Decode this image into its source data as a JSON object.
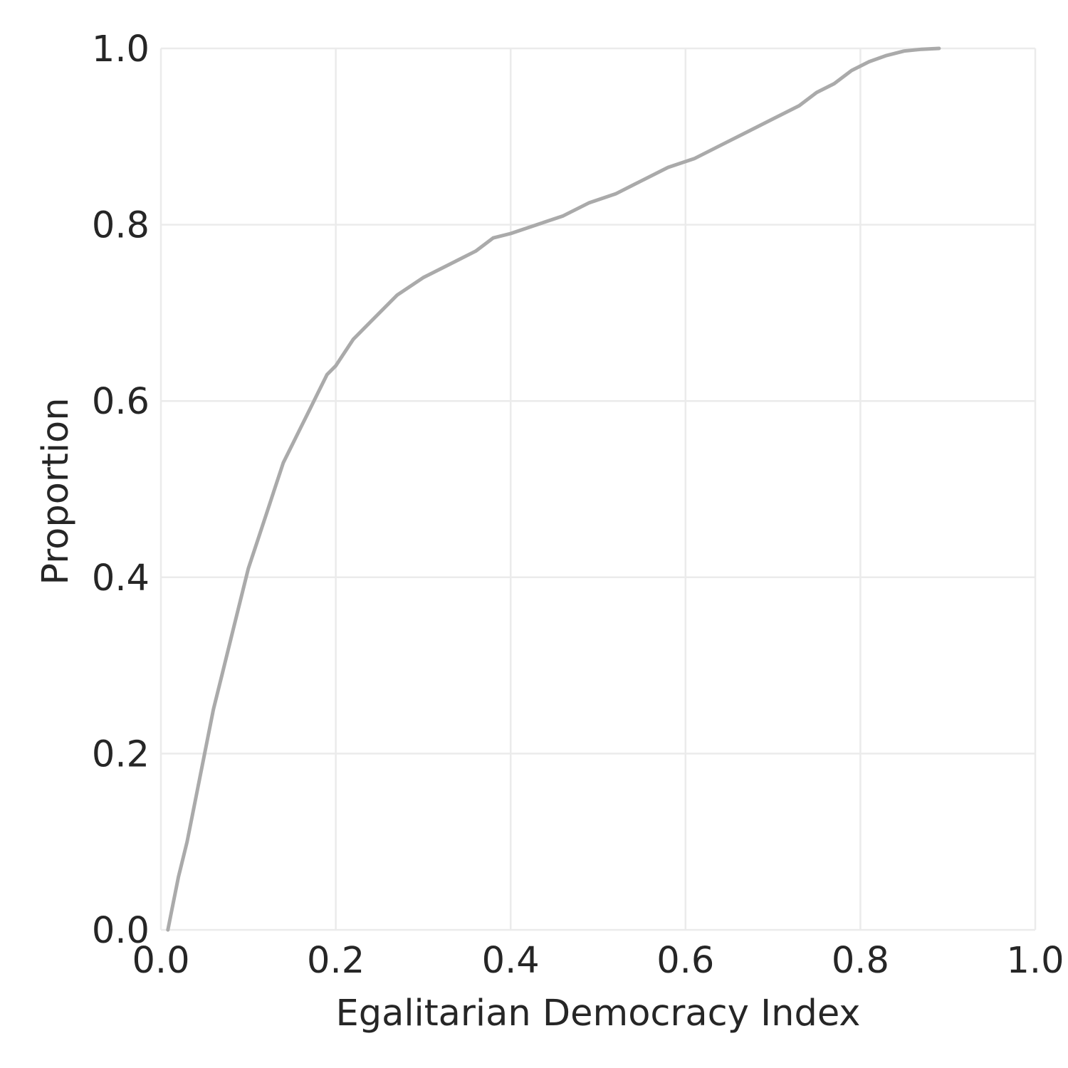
{
  "chart_data": {
    "type": "line",
    "subtype": "ecdf",
    "xlabel": "Egalitarian Democracy Index",
    "ylabel": "Proportion",
    "xlim": [
      0.0,
      1.0
    ],
    "ylim": [
      0.0,
      1.0
    ],
    "grid": true,
    "legend": "none",
    "x_ticks": [
      "0.0",
      "0.2",
      "0.4",
      "0.6",
      "0.8",
      "1.0"
    ],
    "y_ticks": [
      "0.0",
      "0.2",
      "0.4",
      "0.6",
      "0.8",
      "1.0"
    ],
    "colors": {
      "line": "#aaaaaa",
      "grid": "#ebebeb",
      "text": "#262626",
      "background": "#ffffff"
    },
    "series": [
      {
        "x": [
          0.008,
          0.012,
          0.02,
          0.03,
          0.04,
          0.05,
          0.06,
          0.07,
          0.08,
          0.09,
          0.1,
          0.11,
          0.12,
          0.13,
          0.14,
          0.15,
          0.16,
          0.17,
          0.18,
          0.19,
          0.2,
          0.22,
          0.24,
          0.26,
          0.27,
          0.3,
          0.32,
          0.34,
          0.36,
          0.38,
          0.4,
          0.43,
          0.46,
          0.49,
          0.52,
          0.55,
          0.58,
          0.61,
          0.64,
          0.67,
          0.7,
          0.73,
          0.75,
          0.77,
          0.79,
          0.81,
          0.83,
          0.85,
          0.87,
          0.89
        ],
        "y": [
          0.0,
          0.02,
          0.06,
          0.1,
          0.15,
          0.2,
          0.25,
          0.29,
          0.33,
          0.37,
          0.41,
          0.44,
          0.47,
          0.5,
          0.53,
          0.55,
          0.57,
          0.59,
          0.61,
          0.63,
          0.64,
          0.67,
          0.69,
          0.71,
          0.72,
          0.74,
          0.75,
          0.76,
          0.77,
          0.785,
          0.79,
          0.8,
          0.81,
          0.825,
          0.835,
          0.85,
          0.865,
          0.875,
          0.89,
          0.905,
          0.92,
          0.935,
          0.95,
          0.96,
          0.975,
          0.985,
          0.992,
          0.997,
          0.999,
          1.0
        ]
      }
    ]
  }
}
